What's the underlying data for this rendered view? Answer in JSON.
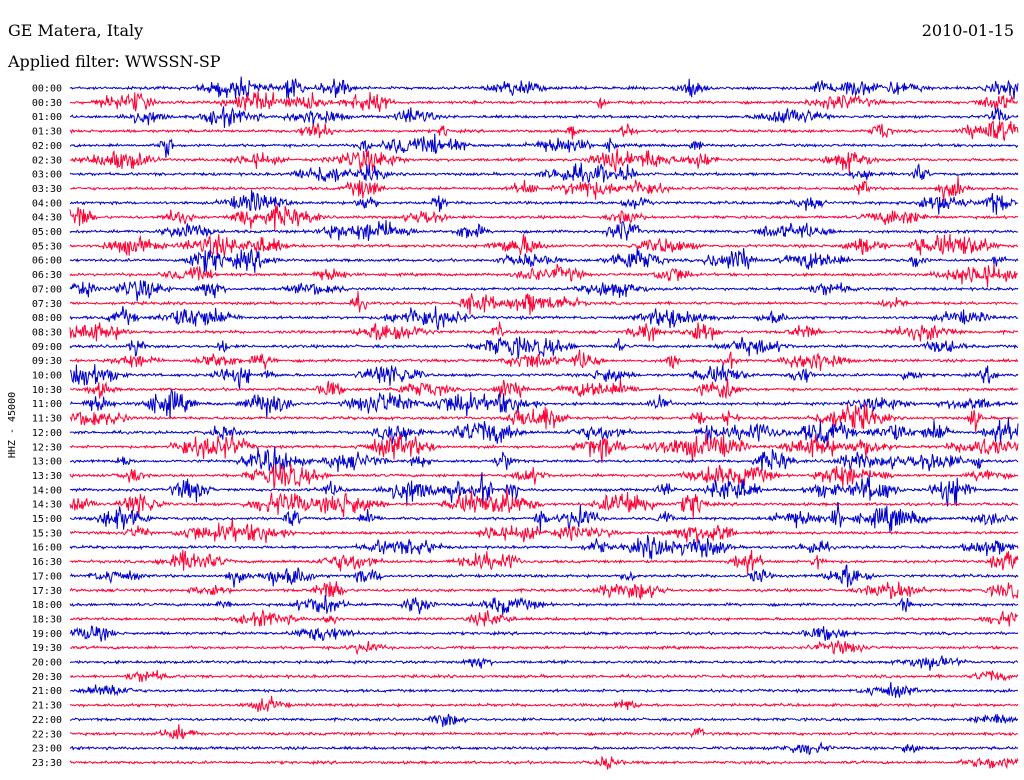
{
  "header": {
    "station": "GE Matera, Italy",
    "date": "2010-01-15",
    "filter": "Applied filter: WWSSN-SP"
  },
  "chart_data": {
    "type": "line",
    "title": "GE Matera, Italy",
    "ylabel": "HHZ - 45000",
    "colors": [
      "#0000cc",
      "#ff0033"
    ],
    "tick_labels": [
      "00:00",
      "00:30",
      "01:00",
      "01:30",
      "02:00",
      "02:30",
      "03:00",
      "03:30",
      "04:00",
      "04:30",
      "05:00",
      "05:30",
      "06:00",
      "06:30",
      "07:00",
      "07:30",
      "08:00",
      "08:30",
      "09:00",
      "09:30",
      "10:00",
      "10:30",
      "11:00",
      "11:30",
      "12:00",
      "12:30",
      "13:00",
      "13:30",
      "14:00",
      "14:30",
      "15:00",
      "15:30",
      "16:00",
      "16:30",
      "17:00",
      "17:30",
      "18:00",
      "18:30",
      "19:00",
      "19:30",
      "20:00",
      "20:30",
      "21:00",
      "21:30",
      "22:00",
      "22:30",
      "23:00",
      "23:30"
    ],
    "activity": [
      0.55,
      0.5,
      0.5,
      0.45,
      0.5,
      0.5,
      0.45,
      0.45,
      0.45,
      0.5,
      0.5,
      0.6,
      0.55,
      0.5,
      0.45,
      0.45,
      0.55,
      0.55,
      0.55,
      0.5,
      0.6,
      0.65,
      0.7,
      0.7,
      0.75,
      0.75,
      0.7,
      0.75,
      0.85,
      0.8,
      0.75,
      0.6,
      0.6,
      0.5,
      0.5,
      0.4,
      0.4,
      0.25,
      0.2,
      0.1,
      0.1,
      0.1,
      0.1,
      0.1,
      0.1,
      0.1,
      0.1,
      0.1
    ]
  }
}
